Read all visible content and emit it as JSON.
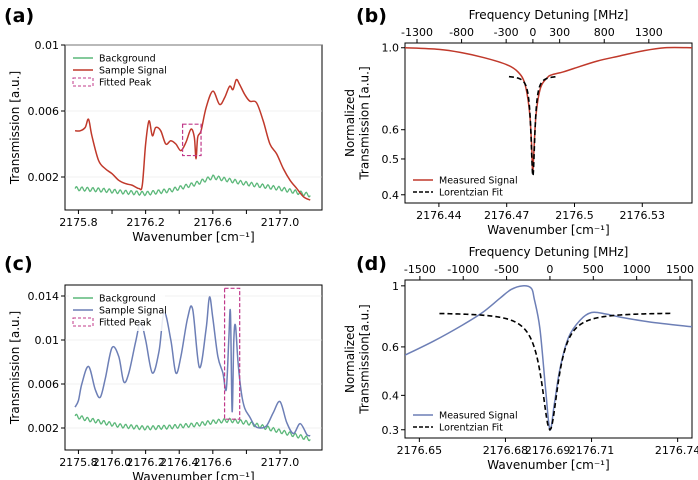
{
  "chart_data": [
    {
      "panel": "(a)",
      "type": "line",
      "xlabel": "Wavenumber [cm⁻¹]",
      "ylabel": "Transmission [a.u.]",
      "xlim": [
        2175.72,
        2177.25
      ],
      "ylim": [
        0.0,
        0.01
      ],
      "xticks": [
        2175.8,
        2176.0,
        2176.2,
        2176.4,
        2176.6,
        2176.8,
        2177.0
      ],
      "xtick_labels": [
        "2175.8",
        "",
        "2176.2",
        "",
        "2176.6",
        "",
        "2177.0"
      ],
      "yticks": [
        0.002,
        0.006,
        0.01
      ],
      "ytick_labels": [
        "0.002",
        "0.006",
        "0.01"
      ],
      "legend": [
        "Background",
        "Sample Signal",
        "Fitted Peak"
      ],
      "legend_position": "top-left",
      "highlight_box": {
        "x0": 2176.42,
        "x1": 2176.53,
        "y0": 0.0033,
        "y1": 0.0052
      },
      "series": [
        {
          "name": "Background",
          "color": "#5cb87a",
          "style": "ripple",
          "x": [
            2175.78,
            2175.95,
            2176.05,
            2176.2,
            2176.35,
            2176.5,
            2176.6,
            2176.8,
            2177.0,
            2177.18
          ],
          "y": [
            0.0013,
            0.0012,
            0.0011,
            0.001,
            0.0012,
            0.0016,
            0.002,
            0.0016,
            0.0013,
            0.0009
          ]
        },
        {
          "name": "Sample Signal",
          "color": "#c0392b",
          "style": "line",
          "x": [
            2175.78,
            2175.81,
            2175.84,
            2175.86,
            2175.88,
            2175.92,
            2175.96,
            2176.0,
            2176.04,
            2176.08,
            2176.12,
            2176.16,
            2176.18,
            2176.2,
            2176.22,
            2176.24,
            2176.26,
            2176.29,
            2176.32,
            2176.35,
            2176.38,
            2176.41,
            2176.44,
            2176.47,
            2176.49,
            2176.5,
            2176.51,
            2176.53,
            2176.56,
            2176.6,
            2176.64,
            2176.67,
            2176.7,
            2176.72,
            2176.74,
            2176.76,
            2176.79,
            2176.82,
            2176.86,
            2176.9,
            2176.94,
            2176.98,
            2177.02,
            2177.06,
            2177.1,
            2177.14,
            2177.18
          ],
          "y": [
            0.0048,
            0.0048,
            0.005,
            0.0055,
            0.0045,
            0.003,
            0.0025,
            0.0022,
            0.0018,
            0.0016,
            0.0015,
            0.0013,
            0.0015,
            0.004,
            0.0054,
            0.0045,
            0.005,
            0.0048,
            0.004,
            0.0042,
            0.004,
            0.0036,
            0.0041,
            0.0049,
            0.0044,
            0.0031,
            0.0044,
            0.0048,
            0.0062,
            0.0072,
            0.0064,
            0.0068,
            0.0075,
            0.0073,
            0.0079,
            0.0076,
            0.007,
            0.0066,
            0.0065,
            0.0054,
            0.004,
            0.0034,
            0.0025,
            0.0018,
            0.0013,
            0.0008,
            0.0006
          ]
        }
      ]
    },
    {
      "panel": "(b)",
      "type": "line",
      "xlabel": "Wavenumber [cm⁻¹]",
      "ylabel": "Normalized\nTransmission [a.u.]",
      "top_xlabel": "Frequency Detuning [MHz]",
      "xlim": [
        2176.425,
        2176.552
      ],
      "ylim": [
        0.38,
        1.03
      ],
      "log_y": true,
      "xticks": [
        2176.44,
        2176.47,
        2176.5,
        2176.53
      ],
      "xtick_labels": [
        "2176.44",
        "2176.47",
        "2176.5",
        "2176.53"
      ],
      "yticks": [
        0.4,
        0.5,
        0.6,
        1.0
      ],
      "ytick_labels": [
        "0.4",
        "0.5",
        "0.6",
        "1.0"
      ],
      "top_xticks": [
        -1300,
        -800,
        -300,
        0,
        300,
        800,
        1300
      ],
      "top_xtick_labels": [
        "-1300",
        "-800",
        "-300",
        "0",
        "300",
        "800",
        "1300"
      ],
      "legend": [
        "Measured Signal",
        "Lorentzian Fit"
      ],
      "legend_position": "bottom-left",
      "series": [
        {
          "name": "Measured Signal",
          "color": "#c0392b",
          "style": "line",
          "x": [
            2176.425,
            2176.44,
            2176.45,
            2176.46,
            2176.47,
            2176.475,
            2176.478,
            2176.48,
            2176.481,
            2176.4815,
            2176.482,
            2176.483,
            2176.485,
            2176.488,
            2176.49,
            2176.495,
            2176.5,
            2176.51,
            2176.52,
            2176.53,
            2176.54,
            2176.552
          ],
          "y": [
            1.0,
            0.99,
            0.97,
            0.94,
            0.9,
            0.86,
            0.8,
            0.68,
            0.55,
            0.46,
            0.52,
            0.66,
            0.78,
            0.83,
            0.845,
            0.86,
            0.88,
            0.92,
            0.95,
            0.98,
            1.0,
            1.0
          ]
        },
        {
          "name": "Lorentzian Fit",
          "color": "#000000",
          "style": "dashed",
          "lorentzian": {
            "x0": 2176.4816,
            "hwhm": 0.0012,
            "base": 0.84,
            "min": 0.45,
            "xmin": 2176.471,
            "xmax": 2176.492
          }
        }
      ]
    },
    {
      "panel": "(c)",
      "type": "line",
      "xlabel": "Wavenumber [cm⁻¹]",
      "ylabel": "Transmission [a.u.]",
      "xlim": [
        2175.72,
        2177.25
      ],
      "ylim": [
        0.0,
        0.015
      ],
      "xticks": [
        2175.8,
        2176.0,
        2176.2,
        2176.4,
        2176.6,
        2176.8,
        2177.0
      ],
      "xtick_labels": [
        "2175.8",
        "2176.0",
        "2176.2",
        "2176.4",
        "2176.6",
        "",
        "2177.0"
      ],
      "yticks": [
        0.002,
        0.006,
        0.01,
        0.014
      ],
      "ytick_labels": [
        "0.002",
        "0.006",
        "0.01",
        "0.014"
      ],
      "legend": [
        "Background",
        "Sample Signal",
        "Fitted Peak"
      ],
      "legend_position": "top-left",
      "highlight_box": {
        "x0": 2176.67,
        "x1": 2176.76,
        "y0": 0.0028,
        "y1": 0.0147
      },
      "series": [
        {
          "name": "Background",
          "color": "#5cb87a",
          "style": "ripple",
          "x": [
            2175.78,
            2175.85,
            2175.95,
            2176.05,
            2176.2,
            2176.35,
            2176.5,
            2176.62,
            2176.7,
            2176.8,
            2176.95,
            2177.1,
            2177.18
          ],
          "y": [
            0.0031,
            0.0028,
            0.0025,
            0.0022,
            0.002,
            0.0021,
            0.0023,
            0.0026,
            0.0027,
            0.0025,
            0.0019,
            0.0013,
            0.001
          ]
        },
        {
          "name": "Sample Signal",
          "color": "#6d7fb6",
          "style": "line",
          "x": [
            2175.78,
            2175.8,
            2175.82,
            2175.86,
            2175.9,
            2175.93,
            2175.96,
            2176.0,
            2176.04,
            2176.07,
            2176.1,
            2176.14,
            2176.17,
            2176.2,
            2176.24,
            2176.28,
            2176.31,
            2176.35,
            2176.38,
            2176.41,
            2176.45,
            2176.48,
            2176.52,
            2176.56,
            2176.58,
            2176.6,
            2176.63,
            2176.66,
            2176.68,
            2176.695,
            2176.705,
            2176.715,
            2176.725,
            2176.735,
            2176.75,
            2176.77,
            2176.79,
            2176.82,
            2176.85,
            2176.88,
            2176.92,
            2176.96,
            2177.0,
            2177.04,
            2177.08,
            2177.12,
            2177.16,
            2177.18
          ],
          "y": [
            0.0039,
            0.0045,
            0.006,
            0.0076,
            0.0055,
            0.0048,
            0.0065,
            0.0093,
            0.0085,
            0.0062,
            0.007,
            0.0098,
            0.0116,
            0.01,
            0.007,
            0.009,
            0.0125,
            0.01,
            0.007,
            0.0085,
            0.012,
            0.0128,
            0.0075,
            0.011,
            0.0139,
            0.012,
            0.0085,
            0.007,
            0.0055,
            0.01,
            0.0125,
            0.0035,
            0.01,
            0.0113,
            0.008,
            0.0052,
            0.0038,
            0.003,
            0.0022,
            0.002,
            0.0022,
            0.0034,
            0.0044,
            0.0025,
            0.0015,
            0.0024,
            0.0014,
            0.0013
          ]
        }
      ]
    },
    {
      "panel": "(d)",
      "type": "line",
      "xlabel": "Wavenumber [cm⁻¹]",
      "ylabel": "Normalized\nTransmission[a.u.]",
      "top_xlabel": "Frequency Detuning [MHz]",
      "xlim": [
        2176.645,
        2176.745
      ],
      "ylim": [
        0.28,
        1.05
      ],
      "log_y": true,
      "xticks": [
        2176.65,
        2176.68,
        2176.71,
        2176.74
      ],
      "xtick_labels": [
        "2176.65",
        "2176.68",
        "2176.71",
        "2176.74"
      ],
      "extra_xtick_labels": [
        {
          "x": 2176.6947,
          "label": "2176.69"
        }
      ],
      "yticks": [
        0.3,
        0.4,
        0.6,
        1.0
      ],
      "ytick_labels": [
        "0.3",
        "0.4",
        "0.6",
        "1"
      ],
      "top_xticks": [
        -1500,
        -1000,
        -500,
        0,
        500,
        1000,
        1500
      ],
      "top_xtick_labels": [
        "-1500",
        "-1000",
        "-500",
        "0",
        "500",
        "1000",
        "1500"
      ],
      "legend": [
        "Measured Signal",
        "Lorentzian Fit"
      ],
      "legend_position": "bottom-left",
      "series": [
        {
          "name": "Measured Signal",
          "color": "#6d7fb6",
          "style": "line",
          "x": [
            2176.645,
            2176.655,
            2176.665,
            2176.672,
            2176.678,
            2176.682,
            2176.686,
            2176.689,
            2176.69,
            2176.692,
            2176.694,
            2176.6955,
            2176.697,
            2176.699,
            2176.702,
            2176.706,
            2176.71,
            2176.715,
            2176.72,
            2176.73,
            2176.745
          ],
          "y": [
            0.56,
            0.63,
            0.72,
            0.8,
            0.9,
            0.97,
            1.0,
            0.98,
            0.9,
            0.7,
            0.42,
            0.3,
            0.37,
            0.5,
            0.65,
            0.75,
            0.8,
            0.79,
            0.77,
            0.74,
            0.71
          ]
        },
        {
          "name": "Lorentzian Fit",
          "color": "#000000",
          "style": "dashed",
          "lorentzian": {
            "x0": 2176.6955,
            "hwhm": 0.0045,
            "base": 0.8,
            "min": 0.3,
            "xmin": 2176.657,
            "xmax": 2176.738
          }
        }
      ]
    }
  ]
}
